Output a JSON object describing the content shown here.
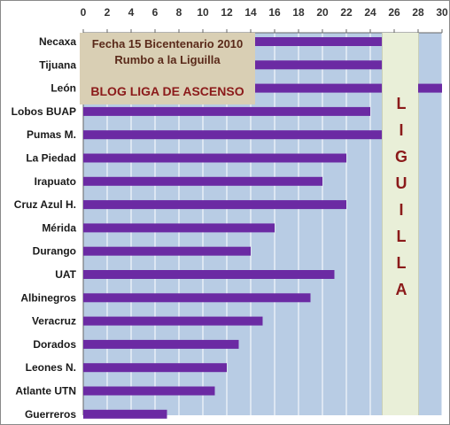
{
  "chart_data": {
    "type": "bar",
    "orientation": "horizontal",
    "categories": [
      "Necaxa",
      "Tijuana",
      "León",
      "Lobos BUAP",
      "Pumas M.",
      "La Piedad",
      "Irapuato",
      "Cruz Azul H.",
      "Mérida",
      "Durango",
      "UAT",
      "Albinegros",
      "Veracruz",
      "Dorados",
      "Leones N.",
      "Atlante UTN",
      "Guerreros"
    ],
    "values": [
      25,
      25,
      30,
      24,
      25,
      22,
      20,
      22,
      16,
      14,
      21,
      19,
      15,
      13,
      12,
      11,
      7
    ],
    "xlim": [
      0,
      30
    ],
    "xticks": [
      0,
      2,
      4,
      6,
      8,
      10,
      12,
      14,
      16,
      18,
      20,
      22,
      24,
      26,
      28,
      30
    ],
    "x_axis_position": "top",
    "grid": true,
    "bar_color": "#6b2aa3",
    "plot_bg_color": "#b8cce4",
    "title": "",
    "xlabel": "",
    "ylabel": ""
  },
  "info_box": {
    "line1": "Fecha 15 Bicentenario 2010",
    "line2": "Rumbo a la Liguilla",
    "line3": "BLOG LIGA DE ASCENSO"
  },
  "liguilla": {
    "letters": [
      "L",
      "I",
      "G",
      "U",
      "I",
      "L",
      "L",
      "A"
    ],
    "x_range": [
      25,
      28
    ]
  }
}
